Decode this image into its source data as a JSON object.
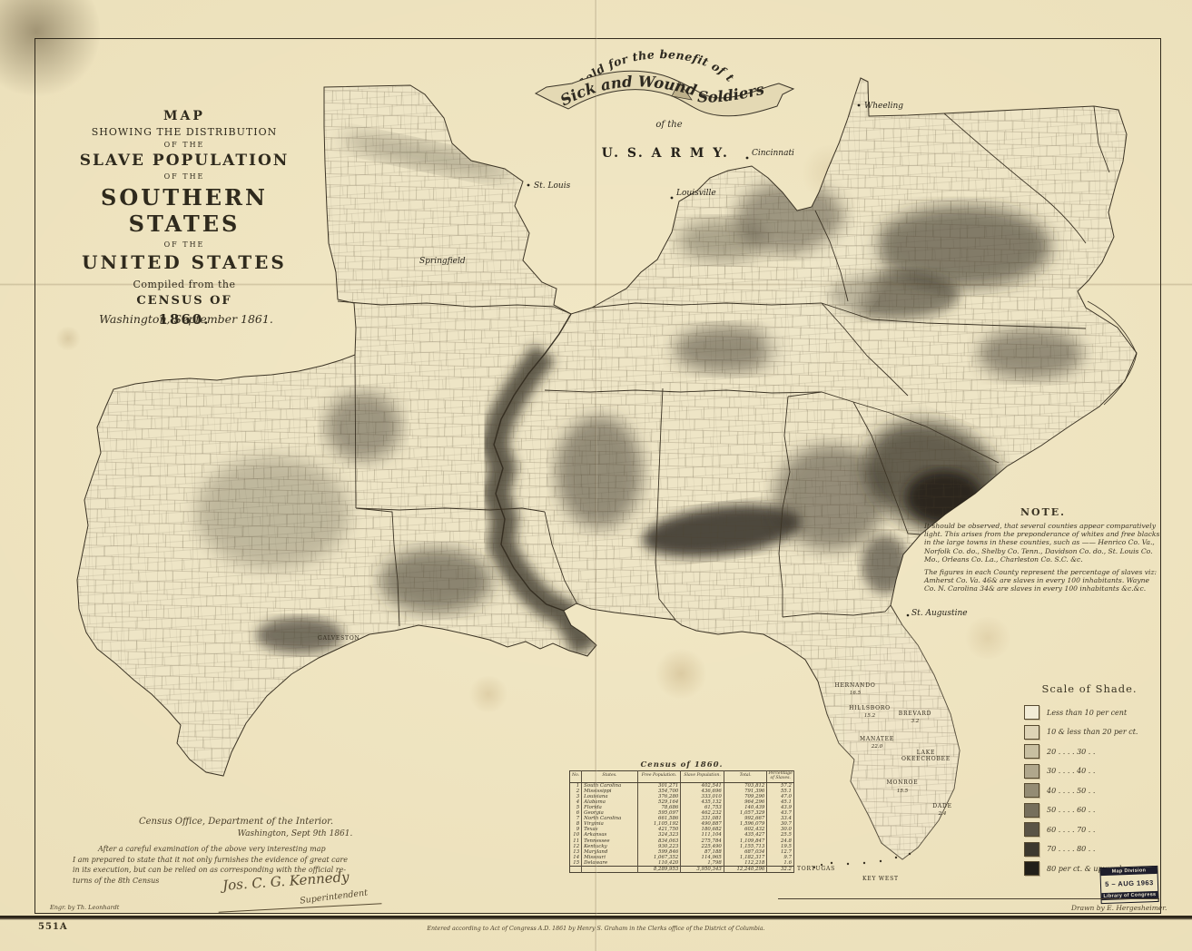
{
  "banner": {
    "arc": "Sold for the benefit of the",
    "ribbon_left": "Sick and Wounded",
    "ribbon_right": "Soldiers",
    "of_the": "of the",
    "army": "U. S. A R M Y."
  },
  "title_block": {
    "line1": "MAP",
    "line2": "SHOWING THE DISTRIBUTION",
    "line3": "OF THE",
    "line4": "SLAVE POPULATION",
    "line5": "OF THE",
    "line6": "SOUTHERN STATES",
    "line7": "OF THE",
    "line8": "UNITED STATES",
    "line9": "Compiled from the",
    "line10": "CENSUS OF",
    "line11": "1860.",
    "dateline": "Washington, September 1861."
  },
  "note": {
    "heading": "NOTE.",
    "paragraph1": "It should be observed, that several counties appear comparatively light. This arises from the preponderance of whites and free blacks in the large towns in these counties, such as —— Henrico Co. Va., Norfolk Co. do., Shelby Co. Tenn., Davidson Co. do., St. Louis Co. Mo., Orleans Co. La., Charleston Co. S.C. &c.",
    "paragraph2": "The figures in each County represent the percentage of slaves viz: Amherst Co. Va. 46& are slaves in every 100 inhabitants. Wayne Co. N. Carolina 34& are slaves in every 100 inhabitants &c.&c."
  },
  "legend": {
    "title": "Scale of Shade.",
    "entries": [
      {
        "label": "Less than 10 per cent",
        "color": "#f2ecd6"
      },
      {
        "label": "10 & less than 20 per ct.",
        "color": "#ded4b6"
      },
      {
        "label": "20 . .     . .  30  . .",
        "color": "#c8bfa1"
      },
      {
        "label": "30 . .     . .  40  . .",
        "color": "#b0a78c"
      },
      {
        "label": "40 . .     . .  50  . .",
        "color": "#948c74"
      },
      {
        "label": "50 . .     . .  60  . .",
        "color": "#766f5c"
      },
      {
        "label": "60 . .     . .  70  . .",
        "color": "#5a5446"
      },
      {
        "label": "70 . .     . .  80  . .",
        "color": "#3d392f"
      },
      {
        "label": "80 per ct. & upwards.",
        "color": "#221f19"
      }
    ]
  },
  "census": {
    "title": "Census of 1860.",
    "columns": [
      "No.",
      "States.",
      "Free Population.",
      "Slave Population.",
      "Total.",
      "Percentage of Slaves."
    ],
    "rows": [
      [
        "1",
        "South Carolina",
        "301,271",
        "402,541",
        "703,812",
        "57.2"
      ],
      [
        "2",
        "Mississippi",
        "354,700",
        "436,696",
        "791,396",
        "55.1"
      ],
      [
        "3",
        "Louisiana",
        "376,280",
        "333,010",
        "709,290",
        "47.0"
      ],
      [
        "4",
        "Alabama",
        "529,164",
        "435,132",
        "964,296",
        "45.1"
      ],
      [
        "5",
        "Florida",
        "78,686",
        "61,753",
        "140,439",
        "43.9"
      ],
      [
        "6",
        "Georgia",
        "595,097",
        "462,232",
        "1,057,329",
        "43.7"
      ],
      [
        "7",
        "North Carolina",
        "661,586",
        "331,081",
        "992,667",
        "33.4"
      ],
      [
        "8",
        "Virginia",
        "1,105,192",
        "490,887",
        "1,596,079",
        "30.7"
      ],
      [
        "9",
        "Texas",
        "421,750",
        "180,682",
        "602,432",
        "30.0"
      ],
      [
        "10",
        "Arkansas",
        "324,323",
        "111,104",
        "435,427",
        "25.5"
      ],
      [
        "11",
        "Tennessee",
        "834,063",
        "275,784",
        "1,109,847",
        "24.8"
      ],
      [
        "12",
        "Kentucky",
        "930,223",
        "225,490",
        "1,155,713",
        "19.5"
      ],
      [
        "13",
        "Maryland",
        "599,846",
        "87,188",
        "687,034",
        "12.7"
      ],
      [
        "14",
        "Missouri",
        "1,067,352",
        "114,965",
        "1,182,317",
        "9.7"
      ],
      [
        "15",
        "Delaware",
        "110,420",
        "1,798",
        "112,218",
        "1.6"
      ]
    ],
    "totals": [
      [
        "",
        "",
        "8,289,953",
        "3,950,343",
        "12,240,296",
        "32.2"
      ]
    ]
  },
  "letter": {
    "line1": "Census Office, Department of the Interior.",
    "line2": "Washington, Sept 9th 1861.",
    "body1": "After a careful examination of the above very interesting map",
    "body2": "I am prepared to state that it not only furnishes the evidence of great care",
    "body3": "in its execution,  but can be relied on as corresponding with the official re-",
    "body4": "turns of the 8th Census",
    "signature": "Jos. C. G. Kennedy",
    "signature_title": "Superintendent"
  },
  "stamp": {
    "line1": "Map Division",
    "line2": "5 – AUG 1963",
    "line3": "Library of Congress"
  },
  "credits": {
    "engraver": "Engr. by Th. Leonhardt",
    "draftsman": "Drawn by E. Hergesheimer.",
    "copyright": "Entered according to Act of Congress A.D. 1861 by Henry S. Graham in the Clerks office of the District of Columbia.",
    "plate_number": "551A"
  },
  "map_labels": {
    "wheeling": "Wheeling",
    "cincinnati": "Cincinnati",
    "louisville": "Louisville",
    "st_louis": "St. Louis",
    "springfield": "Springfield",
    "galveston": "GALVESTON",
    "st_augustine": "St. Augustine",
    "tortugas": "TORTUGAS",
    "key_west": "KEY WEST",
    "hernando": "HERNANDO",
    "hernando_v": "16.5",
    "hillsboro": "HILLSBORO",
    "hillsboro_v": "15.2",
    "brevard": "BREVARD",
    "brevard_v": "3.2",
    "manatee": "MANATEE",
    "manatee_v": "22.0",
    "okeechobee1": "LAKE",
    "okeechobee2": "OKEECHOBEE",
    "monroe": "MONROE",
    "monroe_v": "15.5",
    "dade": "DADE",
    "dade_v": "2.4"
  }
}
